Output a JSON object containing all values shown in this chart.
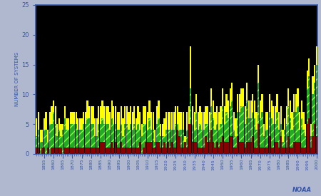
{
  "ylabel": "NUMBER OF SYSTEMS",
  "noaa_label": "NOAA",
  "background_color": "#000000",
  "figure_bg": "#b0b8d0",
  "years": [
    1851,
    1852,
    1853,
    1854,
    1855,
    1856,
    1857,
    1858,
    1859,
    1860,
    1861,
    1862,
    1863,
    1864,
    1865,
    1866,
    1867,
    1868,
    1869,
    1870,
    1871,
    1872,
    1873,
    1874,
    1875,
    1876,
    1877,
    1878,
    1879,
    1880,
    1881,
    1882,
    1883,
    1884,
    1885,
    1886,
    1887,
    1888,
    1889,
    1890,
    1891,
    1892,
    1893,
    1894,
    1895,
    1896,
    1897,
    1898,
    1899,
    1900,
    1901,
    1902,
    1903,
    1904,
    1905,
    1906,
    1907,
    1908,
    1909,
    1910,
    1911,
    1912,
    1913,
    1914,
    1915,
    1916,
    1917,
    1918,
    1919,
    1920,
    1921,
    1922,
    1923,
    1924,
    1925,
    1926,
    1927,
    1928,
    1929,
    1930,
    1931,
    1932,
    1933,
    1934,
    1935,
    1936,
    1937,
    1938,
    1939,
    1940,
    1941,
    1942,
    1943,
    1944,
    1945,
    1946,
    1947,
    1948,
    1949,
    1950,
    1951,
    1952,
    1953,
    1954,
    1955,
    1956,
    1957,
    1958,
    1959,
    1960,
    1961,
    1962,
    1963,
    1964,
    1965,
    1966,
    1967,
    1968,
    1969,
    1970,
    1971,
    1972,
    1973,
    1974,
    1975,
    1976,
    1977,
    1978,
    1979,
    1980,
    1981,
    1982,
    1983,
    1984,
    1985,
    1986,
    1987,
    1988,
    1989,
    1990,
    1991,
    1992,
    1993,
    1994,
    1995,
    1996,
    1997,
    1998,
    1999,
    2000
  ],
  "major_hurricanes": [
    1,
    1,
    0,
    1,
    1,
    0,
    1,
    0,
    1,
    1,
    1,
    1,
    1,
    1,
    0,
    1,
    1,
    1,
    1,
    1,
    1,
    1,
    1,
    1,
    1,
    1,
    1,
    1,
    1,
    1,
    1,
    1,
    1,
    1,
    2,
    2,
    2,
    1,
    1,
    1,
    2,
    1,
    2,
    1,
    1,
    2,
    1,
    1,
    1,
    1,
    1,
    1,
    1,
    1,
    1,
    2,
    0,
    1,
    2,
    2,
    2,
    2,
    1,
    1,
    2,
    2,
    1,
    1,
    2,
    1,
    2,
    1,
    2,
    1,
    1,
    4,
    3,
    1,
    1,
    2,
    1,
    5,
    5,
    2,
    2,
    2,
    1,
    1,
    1,
    1,
    3,
    2,
    2,
    4,
    2,
    1,
    2,
    1,
    2,
    3,
    2,
    2,
    2,
    3,
    3,
    1,
    1,
    3,
    2,
    2,
    2,
    1,
    2,
    2,
    2,
    3,
    1,
    1,
    5,
    1,
    1,
    1,
    1,
    1,
    3,
    1,
    1,
    2,
    2,
    1,
    3,
    1,
    1,
    1,
    3,
    1,
    1,
    2,
    2,
    2,
    2,
    1,
    1,
    1,
    5,
    6,
    1,
    3,
    5,
    3
  ],
  "hurricanes": [
    3,
    4,
    2,
    2,
    4,
    4,
    2,
    5,
    5,
    7,
    5,
    3,
    4,
    3,
    4,
    6,
    4,
    4,
    5,
    5,
    5,
    5,
    4,
    4,
    4,
    5,
    5,
    6,
    6,
    5,
    5,
    3,
    3,
    5,
    5,
    6,
    5,
    5,
    5,
    4,
    6,
    5,
    5,
    4,
    4,
    5,
    3,
    5,
    5,
    4,
    5,
    4,
    5,
    4,
    5,
    4,
    3,
    5,
    5,
    4,
    6,
    4,
    4,
    2,
    5,
    6,
    3,
    3,
    3,
    4,
    4,
    4,
    4,
    4,
    5,
    5,
    4,
    4,
    4,
    2,
    4,
    5,
    11,
    5,
    4,
    7,
    4,
    5,
    4,
    4,
    5,
    5,
    4,
    8,
    6,
    4,
    5,
    4,
    5,
    8,
    5,
    7,
    6,
    8,
    9,
    4,
    3,
    7,
    7,
    8,
    8,
    5,
    9,
    6,
    6,
    7,
    6,
    4,
    12,
    6,
    7,
    3,
    4,
    4,
    7,
    6,
    5,
    5,
    7,
    4,
    5,
    2,
    4,
    5,
    8,
    6,
    4,
    7,
    7,
    8,
    4,
    6,
    4,
    3,
    11,
    13,
    3,
    10,
    12,
    15
  ],
  "tropical_storms": [
    3,
    3,
    2,
    2,
    2,
    3,
    2,
    2,
    3,
    2,
    3,
    2,
    2,
    2,
    1,
    2,
    2,
    2,
    2,
    2,
    2,
    2,
    2,
    2,
    2,
    2,
    2,
    3,
    2,
    3,
    3,
    3,
    3,
    3,
    3,
    3,
    3,
    3,
    3,
    3,
    3,
    3,
    3,
    3,
    3,
    3,
    3,
    3,
    3,
    3,
    3,
    3,
    3,
    2,
    3,
    3,
    2,
    3,
    3,
    3,
    3,
    3,
    3,
    2,
    3,
    3,
    2,
    2,
    3,
    3,
    3,
    3,
    3,
    3,
    3,
    3,
    3,
    3,
    3,
    1,
    3,
    3,
    7,
    3,
    3,
    3,
    3,
    3,
    3,
    3,
    3,
    3,
    3,
    3,
    3,
    3,
    3,
    3,
    3,
    3,
    3,
    3,
    3,
    3,
    3,
    3,
    3,
    3,
    3,
    3,
    3,
    3,
    3,
    3,
    3,
    3,
    3,
    3,
    3,
    3,
    3,
    2,
    3,
    3,
    3,
    3,
    3,
    3,
    3,
    3,
    3,
    2,
    2,
    3,
    3,
    3,
    3,
    3,
    3,
    3,
    3,
    3,
    3,
    2,
    3,
    3,
    2,
    3,
    3,
    3
  ],
  "color_major": "#880000",
  "color_hurricane_fill": "#22aa22",
  "color_hurricane_hatch": "#88ff44",
  "color_storm": "#ffff00",
  "ylim": [
    0,
    25
  ],
  "yticks": [
    0,
    5,
    10,
    15,
    20,
    25
  ],
  "bar_width": 0.85
}
